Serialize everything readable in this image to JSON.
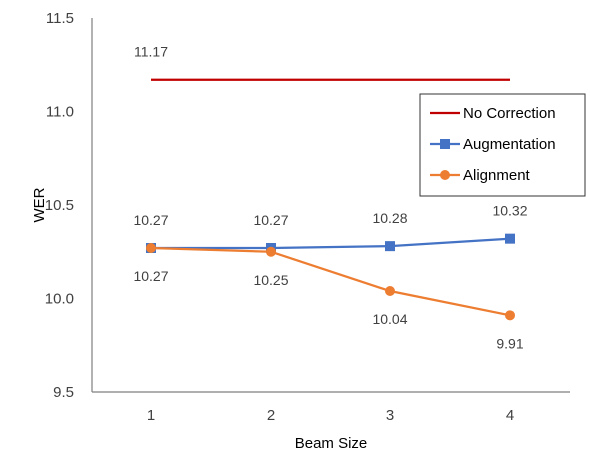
{
  "chart_data": {
    "type": "line",
    "title": "",
    "xlabel": "Beam Size",
    "ylabel": "WER",
    "categories": [
      "1",
      "2",
      "3",
      "4"
    ],
    "ylim": [
      9.5,
      11.5
    ],
    "yticks": [
      "9.5",
      "10.0",
      "10.5",
      "11.0",
      "11.5"
    ],
    "grid": false,
    "legend_position": "right",
    "series": [
      {
        "name": "No Correction",
        "values": [
          11.17,
          11.17,
          11.17,
          11.17
        ],
        "labels": [
          "11.17",
          "",
          "",
          ""
        ],
        "label_side": [
          "above",
          "",
          "",
          ""
        ],
        "color": "#C00000",
        "marker": "none"
      },
      {
        "name": "Augmentation",
        "values": [
          10.27,
          10.27,
          10.28,
          10.32
        ],
        "labels": [
          "10.27",
          "10.27",
          "10.28",
          "10.32"
        ],
        "label_side": [
          "above",
          "above",
          "above",
          "above"
        ],
        "color": "#4472C4",
        "marker": "square"
      },
      {
        "name": "Alignment",
        "values": [
          10.27,
          10.25,
          10.04,
          9.91
        ],
        "labels": [
          "10.27",
          "10.25",
          "10.04",
          "9.91"
        ],
        "label_side": [
          "below",
          "below",
          "below",
          "below"
        ],
        "color": "#ED7D31",
        "marker": "circle"
      }
    ]
  }
}
